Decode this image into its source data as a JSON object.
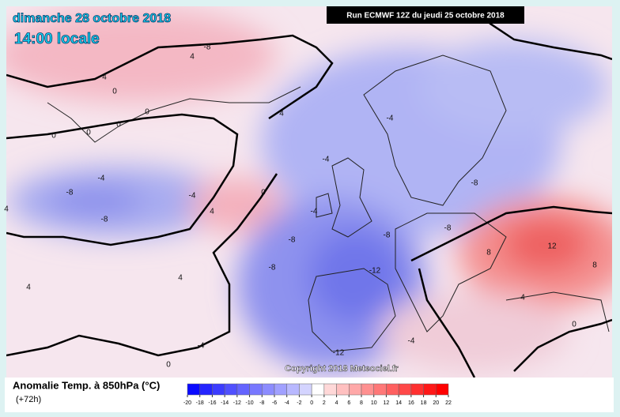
{
  "header": {
    "date": "dimanche 28 octobre 2018",
    "time": "14:00 locale",
    "run": "Run ECMWF 12Z du jeudi 25 octobre 2018"
  },
  "map": {
    "copyright": "Copyright 2018 Meteociel.fr",
    "contour_labels": [
      "-8",
      "4",
      "4",
      "0",
      "0",
      "0",
      "0",
      "-4",
      "-8",
      "-8",
      "-4",
      "4",
      "0",
      "4",
      "-4",
      "-8",
      "-4",
      "-8",
      "-8",
      "-4",
      "-12",
      "-8",
      "-8",
      "-12",
      "-4",
      "-4",
      "4",
      "4",
      "0",
      "8",
      "12",
      "8",
      "4",
      "0",
      "0",
      "4"
    ]
  },
  "legend": {
    "title": "Anomalie Temp. à 850hPa (°C)",
    "lead": "(+72h)",
    "ticks": [
      -20,
      -18,
      -16,
      -14,
      -12,
      -10,
      -8,
      -6,
      -4,
      -2,
      0,
      2,
      4,
      6,
      8,
      10,
      12,
      14,
      16,
      18,
      20,
      22
    ],
    "colors": [
      "#0a0aff",
      "#2424ff",
      "#3c3cff",
      "#5050ff",
      "#6464ff",
      "#7878ff",
      "#8c8cff",
      "#a0a0ff",
      "#b8b8ff",
      "#d4d4ff",
      "#ffffff",
      "#ffd8d8",
      "#ffc0c0",
      "#ffa8a8",
      "#ff9090",
      "#ff7878",
      "#ff6060",
      "#ff4848",
      "#ff3030",
      "#ff1818",
      "#ff0000"
    ]
  }
}
